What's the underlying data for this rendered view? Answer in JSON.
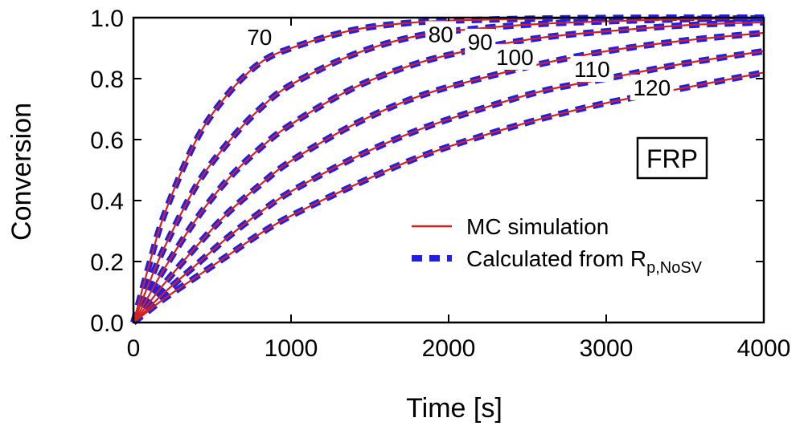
{
  "chart_data": {
    "type": "line",
    "xlabel": "Time [s]",
    "ylabel": "Conversion",
    "xlim": [
      0,
      4000
    ],
    "ylim": [
      0,
      1.0
    ],
    "x_ticks": [
      "0",
      "1000",
      "2000",
      "3000",
      "4000"
    ],
    "y_ticks": [
      "0.0",
      "0.2",
      "0.4",
      "0.6",
      "0.8",
      "1.0"
    ],
    "x": [
      0,
      100,
      200,
      400,
      600,
      800,
      1000,
      1400,
      1800,
      2200,
      2600,
      3000,
      3500,
      4000
    ],
    "series": [
      {
        "name": "MC simulation",
        "style": "solid",
        "color": "#d62020",
        "curves": [
          {
            "label": "70",
            "values": [
              0,
              0.19,
              0.36,
              0.6,
              0.75,
              0.85,
              0.9,
              0.96,
              0.985,
              0.993,
              0.997,
              0.999,
              1.0,
              1.0
            ]
          },
          {
            "label": "80",
            "values": [
              0,
              0.13,
              0.25,
              0.45,
              0.59,
              0.7,
              0.78,
              0.88,
              0.94,
              0.965,
              0.98,
              0.988,
              0.995,
              0.998
            ]
          },
          {
            "label": "90",
            "values": [
              0,
              0.09,
              0.18,
              0.34,
              0.47,
              0.57,
              0.65,
              0.77,
              0.85,
              0.9,
              0.935,
              0.955,
              0.975,
              0.985
            ]
          },
          {
            "label": "100",
            "values": [
              0,
              0.065,
              0.13,
              0.25,
              0.36,
              0.45,
              0.53,
              0.65,
              0.74,
              0.8,
              0.85,
              0.89,
              0.925,
              0.95
            ]
          },
          {
            "label": "110",
            "values": [
              0,
              0.05,
              0.1,
              0.19,
              0.28,
              0.36,
              0.43,
              0.54,
              0.63,
              0.7,
              0.76,
              0.8,
              0.85,
              0.89
            ]
          },
          {
            "label": "120",
            "values": [
              0,
              0.04,
              0.08,
              0.15,
              0.22,
              0.29,
              0.35,
              0.45,
              0.54,
              0.61,
              0.67,
              0.72,
              0.77,
              0.82
            ]
          }
        ]
      },
      {
        "name": "Calculated from R",
        "name_sub": "p,NoSV",
        "style": "dashed",
        "color": "#1f1fe6",
        "curves": [
          {
            "label": "70",
            "values": [
              0,
              0.19,
              0.36,
              0.6,
              0.75,
              0.85,
              0.9,
              0.96,
              0.985,
              0.993,
              0.997,
              0.999,
              1.0,
              1.0
            ]
          },
          {
            "label": "80",
            "values": [
              0,
              0.13,
              0.25,
              0.45,
              0.59,
              0.7,
              0.78,
              0.88,
              0.94,
              0.965,
              0.98,
              0.988,
              0.995,
              0.998
            ]
          },
          {
            "label": "90",
            "values": [
              0,
              0.09,
              0.18,
              0.34,
              0.47,
              0.57,
              0.65,
              0.77,
              0.85,
              0.9,
              0.935,
              0.955,
              0.975,
              0.985
            ]
          },
          {
            "label": "100",
            "values": [
              0,
              0.065,
              0.13,
              0.25,
              0.36,
              0.45,
              0.53,
              0.65,
              0.74,
              0.8,
              0.85,
              0.89,
              0.925,
              0.95
            ]
          },
          {
            "label": "110",
            "values": [
              0,
              0.05,
              0.1,
              0.19,
              0.28,
              0.36,
              0.43,
              0.54,
              0.63,
              0.7,
              0.76,
              0.8,
              0.85,
              0.89
            ]
          },
          {
            "label": "120",
            "values": [
              0,
              0.04,
              0.08,
              0.15,
              0.22,
              0.29,
              0.35,
              0.45,
              0.54,
              0.61,
              0.67,
              0.72,
              0.77,
              0.82
            ]
          }
        ]
      }
    ],
    "curve_labels": [
      {
        "text": "70",
        "x": 800,
        "y": 0.91
      },
      {
        "text": "80",
        "x": 1950,
        "y": 0.92
      },
      {
        "text": "90",
        "x": 2200,
        "y": 0.895
      },
      {
        "text": "100",
        "x": 2420,
        "y": 0.845
      },
      {
        "text": "110",
        "x": 2910,
        "y": 0.805
      },
      {
        "text": "120",
        "x": 3290,
        "y": 0.745
      }
    ],
    "box_label": "FRP",
    "legend_position": "lower-right",
    "grid": false
  }
}
